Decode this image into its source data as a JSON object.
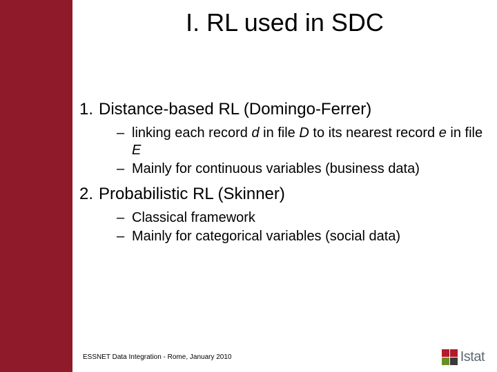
{
  "colors": {
    "sidebar": "#8e1a2a",
    "logo_red1": "#b31b2c",
    "logo_red2": "#b31b2c",
    "logo_green": "#6b8e23",
    "logo_dark": "#3a3a3a",
    "logo_text": "#5c6a72"
  },
  "title": "I. RL used in SDC",
  "items": [
    {
      "num": "1.",
      "text": "Distance-based RL (Domingo-Ferrer)",
      "subs": [
        {
          "dash": "–",
          "html": "linking each record <span class=\"italic\">d</span> in file <span class=\"italic\">D</span> to its nearest record <span class=\"italic\">e</span> in file <span class=\"italic\">E</span>"
        },
        {
          "dash": "–",
          "html": "Mainly for continuous variables (business data)"
        }
      ]
    },
    {
      "num": "2.",
      "text": "Probabilistic RL (Skinner)",
      "subs": [
        {
          "dash": "–",
          "html": "Classical framework"
        },
        {
          "dash": "–",
          "html": "Mainly for categorical variables (social data)"
        }
      ]
    }
  ],
  "footer": "ESSNET Data Integration - Rome, January 2010",
  "logo_text": "Istat"
}
